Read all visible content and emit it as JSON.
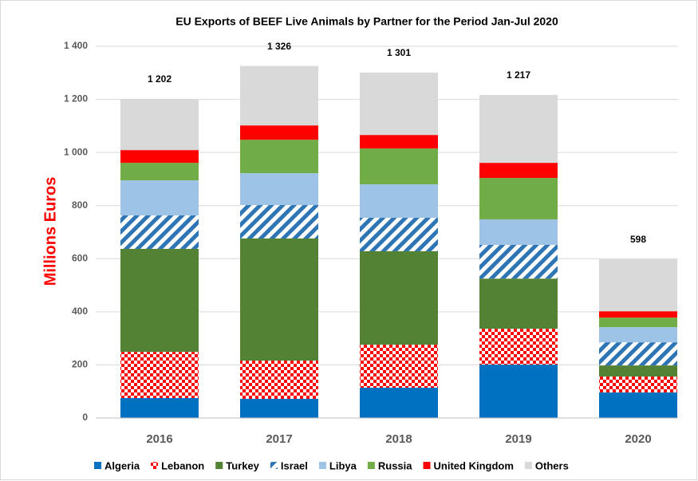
{
  "chart_data": {
    "type": "stacked-bar",
    "title": "EU Exports of BEEF Live Animals by Partner for the Period Jan-Jul 2020",
    "y_label": "Millions Euros",
    "categories": [
      "2016",
      "2017",
      "2018",
      "2019",
      "2020"
    ],
    "series": [
      {
        "name": "Algeria",
        "color": "#0070c0",
        "values": [
          75,
          72,
          114,
          201,
          96
        ]
      },
      {
        "name": "Lebanon",
        "color": "#ff0000",
        "pattern": "checker",
        "values": [
          174,
          144,
          162,
          135,
          60
        ]
      },
      {
        "name": "Turkey",
        "color": "#548235",
        "values": [
          388,
          460,
          352,
          189,
          42
        ]
      },
      {
        "name": "Israel",
        "color": "#2e75b6",
        "pattern": "diagonal",
        "values": [
          126,
          126,
          126,
          127,
          87
        ]
      },
      {
        "name": "Libya",
        "color": "#9dc3e6",
        "values": [
          132,
          120,
          126,
          96,
          57
        ]
      },
      {
        "name": "Russia",
        "color": "#70ad47",
        "values": [
          66,
          126,
          135,
          156,
          36
        ]
      },
      {
        "name": "United Kingdom",
        "color": "#ff0000",
        "values": [
          48,
          54,
          51,
          57,
          24
        ]
      },
      {
        "name": "Others",
        "color": "#d9d9d9",
        "values": [
          193,
          224,
          235,
          256,
          196
        ]
      }
    ],
    "totals": [
      1202,
      1326,
      1301,
      1217,
      598
    ],
    "total_labels": [
      "1 202",
      "1 326",
      "1 301",
      "1 217",
      "598"
    ],
    "ylim": [
      0,
      1400
    ],
    "yticks": [
      0,
      200,
      400,
      600,
      800,
      {
        "value": 1000,
        "label": "1 000"
      },
      {
        "value": 1200,
        "label": "1 200"
      },
      {
        "value": 1400,
        "label": "1 400"
      }
    ],
    "grid": true,
    "legend": "bottom"
  }
}
